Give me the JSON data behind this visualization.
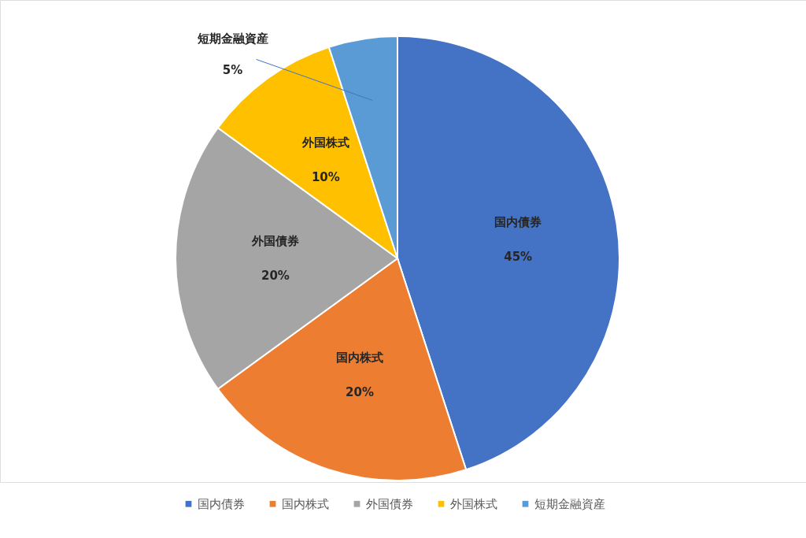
{
  "chart_data": {
    "type": "pie",
    "categories": [
      "国内債券",
      "国内株式",
      "外国債券",
      "外国株式",
      "短期金融資産"
    ],
    "values": [
      45,
      20,
      20,
      10,
      5
    ],
    "colors": [
      "#4472c4",
      "#ed7d31",
      "#a5a5a5",
      "#ffc000",
      "#5b9bd5"
    ],
    "value_labels": [
      "45%",
      "20%",
      "20%",
      "10%",
      "5%"
    ],
    "legend": "bottom"
  }
}
